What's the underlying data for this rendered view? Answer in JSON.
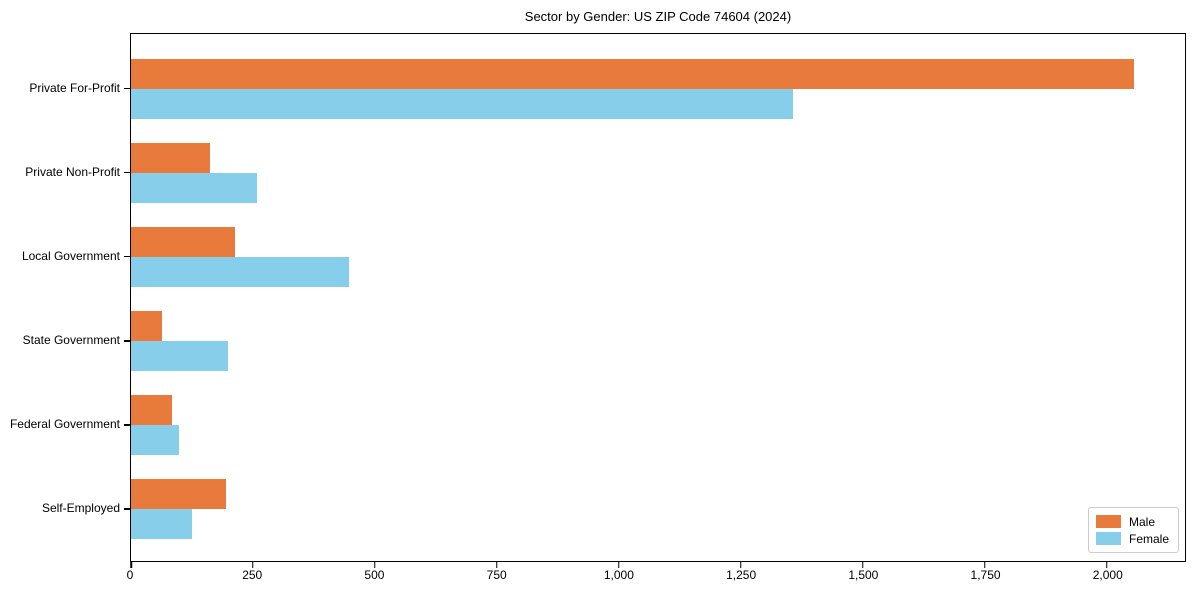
{
  "figure": {
    "title": "Sector by Gender: US ZIP Code 74604 (2024)"
  },
  "chart_data": {
    "type": "bar",
    "orientation": "horizontal",
    "title": "Sector by Gender: US ZIP Code 74604 (2024)",
    "categories": [
      "Private For-Profit",
      "Private Non-Profit",
      "Local Government",
      "State Government",
      "Federal Government",
      "Self-Employed"
    ],
    "series": [
      {
        "name": "Male",
        "color": "#E87B3C",
        "values": [
          2056,
          161,
          213,
          64,
          85,
          194
        ]
      },
      {
        "name": "Female",
        "color": "#87CEEB",
        "values": [
          1356,
          258,
          447,
          198,
          98,
          125
        ]
      }
    ],
    "xlabel": "",
    "ylabel": "",
    "xlim": [
      0,
      2160
    ],
    "x_ticks": [
      {
        "value": 0,
        "label": "0"
      },
      {
        "value": 250,
        "label": "250"
      },
      {
        "value": 500,
        "label": "500"
      },
      {
        "value": 750,
        "label": "750"
      },
      {
        "value": 1000,
        "label": "1,000"
      },
      {
        "value": 1250,
        "label": "1,250"
      },
      {
        "value": 1500,
        "label": "1,500"
      },
      {
        "value": 1750,
        "label": "1,750"
      },
      {
        "value": 2000,
        "label": "2,000"
      }
    ],
    "grid": false,
    "legend": {
      "position": "lower-right",
      "entries": [
        "Male",
        "Female"
      ]
    },
    "colors": {
      "background": "#ffffff",
      "spine": "#000000",
      "legend_border": "#cccccc"
    }
  }
}
